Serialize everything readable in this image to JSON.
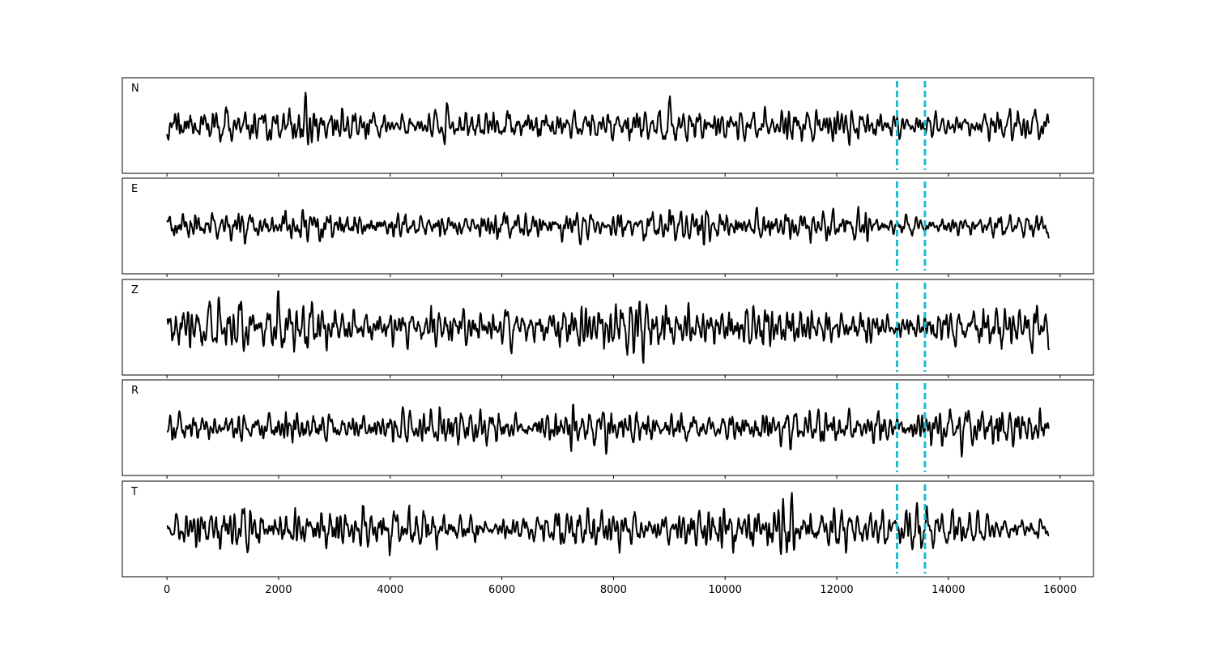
{
  "chart_data": {
    "type": "line",
    "layout": "stacked-panels",
    "x_ticks": [
      0,
      2000,
      4000,
      6000,
      8000,
      10000,
      12000,
      14000,
      16000
    ],
    "x_tick_labels": [
      "0",
      "2000",
      "4000",
      "6000",
      "8000",
      "10000",
      "12000",
      "14000",
      "16000"
    ],
    "xlim": [
      -800,
      16600
    ],
    "x_range": [
      0,
      15800
    ],
    "ylim": [
      -1,
      1
    ],
    "y_ticks_visible": false,
    "grid": false,
    "line_color": "#000000",
    "marker_color": "#17becf",
    "markers": [
      13080,
      13580
    ],
    "marker_style": "dashed",
    "panels": [
      {
        "label": "N",
        "seed": 11,
        "amp": 0.42
      },
      {
        "label": "E",
        "seed": 23,
        "amp": 0.36
      },
      {
        "label": "Z",
        "seed": 37,
        "amp": 0.5
      },
      {
        "label": "R",
        "seed": 41,
        "amp": 0.36
      },
      {
        "label": "T",
        "seed": 59,
        "amp": 0.48
      }
    ]
  }
}
